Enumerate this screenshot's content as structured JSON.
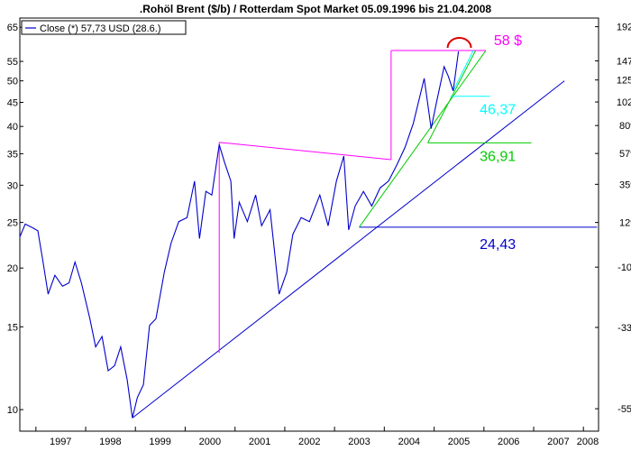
{
  "chart_data": {
    "type": "line",
    "title": ".Rohöl Brent ($/b) / Rotterdam Spot Market 05.09.1996 bis 21.04.2008",
    "xlabel": "",
    "ylabel": "",
    "y_scale": "log",
    "x_range": [
      "1996-09-05",
      "2008-04-21"
    ],
    "ylim": [
      9,
      68
    ],
    "y_ticks_left": [
      "10",
      "15",
      "20",
      "25",
      "30",
      "35",
      "40",
      "45",
      "50",
      "55",
      "65"
    ],
    "y_ticks_right": [
      "-55%",
      "-33%",
      "-10%",
      "12%",
      "35%",
      "57%",
      "80%",
      "102%",
      "125%",
      "147%",
      "192%"
    ],
    "x_ticks": [
      "1997",
      "1998",
      "1999",
      "2000",
      "2001",
      "2002",
      "2003",
      "2004",
      "2005",
      "2006",
      "2007",
      "2008"
    ],
    "grid": false,
    "legend_position": "top-left",
    "series": [
      {
        "name": "Close (*) 57,73 USD (28.6.)",
        "color": "#0000cc",
        "points": [
          [
            "1996-09-05",
            23.3
          ],
          [
            "1996-10-15",
            24.8
          ],
          [
            "1996-12-15",
            24.3
          ],
          [
            "1997-01-15",
            24.0
          ],
          [
            "1997-02-20",
            20.8
          ],
          [
            "1997-04-01",
            17.6
          ],
          [
            "1997-05-20",
            19.3
          ],
          [
            "1997-07-15",
            18.3
          ],
          [
            "1997-09-01",
            18.6
          ],
          [
            "1997-10-15",
            20.6
          ],
          [
            "1997-12-01",
            18.6
          ],
          [
            "1998-02-01",
            15.6
          ],
          [
            "1998-03-15",
            13.6
          ],
          [
            "1998-05-01",
            14.3
          ],
          [
            "1998-06-15",
            12.1
          ],
          [
            "1998-08-01",
            12.4
          ],
          [
            "1998-09-15",
            13.6
          ],
          [
            "1998-11-01",
            11.6
          ],
          [
            "1998-12-10",
            9.6
          ],
          [
            "1999-01-15",
            10.6
          ],
          [
            "1999-03-01",
            11.3
          ],
          [
            "1999-04-15",
            15.1
          ],
          [
            "1999-06-01",
            15.6
          ],
          [
            "1999-08-01",
            19.6
          ],
          [
            "1999-09-20",
            22.6
          ],
          [
            "1999-11-15",
            25.1
          ],
          [
            "2000-01-15",
            25.6
          ],
          [
            "2000-03-10",
            30.6
          ],
          [
            "2000-04-15",
            23.1
          ],
          [
            "2000-06-01",
            29.1
          ],
          [
            "2000-07-15",
            28.6
          ],
          [
            "2000-09-07",
            36.6
          ],
          [
            "2000-10-15",
            33.6
          ],
          [
            "2000-12-01",
            30.6
          ],
          [
            "2000-12-25",
            23.1
          ],
          [
            "2001-02-01",
            27.6
          ],
          [
            "2001-04-01",
            25.1
          ],
          [
            "2001-06-01",
            28.6
          ],
          [
            "2001-07-15",
            24.6
          ],
          [
            "2001-09-15",
            26.6
          ],
          [
            "2001-11-20",
            17.6
          ],
          [
            "2002-01-15",
            19.6
          ],
          [
            "2002-03-01",
            23.6
          ],
          [
            "2002-05-01",
            25.6
          ],
          [
            "2002-07-01",
            25.1
          ],
          [
            "2002-09-15",
            28.6
          ],
          [
            "2002-11-15",
            24.6
          ],
          [
            "2003-01-15",
            30.6
          ],
          [
            "2003-03-10",
            34.6
          ],
          [
            "2003-04-15",
            24.1
          ],
          [
            "2003-06-01",
            27.1
          ],
          [
            "2003-08-01",
            29.1
          ],
          [
            "2003-10-01",
            27.1
          ],
          [
            "2003-12-01",
            29.6
          ],
          [
            "2004-02-01",
            30.6
          ],
          [
            "2004-04-01",
            33.1
          ],
          [
            "2004-06-01",
            36.1
          ],
          [
            "2004-08-01",
            40.6
          ],
          [
            "2004-10-20",
            50.6
          ],
          [
            "2004-12-10",
            39.6
          ],
          [
            "2005-01-15",
            44.6
          ],
          [
            "2005-03-15",
            53.6
          ],
          [
            "2005-04-15",
            51.1
          ],
          [
            "2005-05-20",
            47.6
          ],
          [
            "2005-06-28",
            57.73
          ]
        ]
      }
    ],
    "annotations": [
      {
        "text": "58 $",
        "value": 58.0,
        "color": "#ff00ff"
      },
      {
        "text": "46,37",
        "value": 46.37,
        "color": "#00ffff"
      },
      {
        "text": "36,91",
        "value": 36.91,
        "color": "#00cc00"
      },
      {
        "text": "24,43",
        "value": 24.43,
        "color": "#0000cc"
      }
    ]
  }
}
